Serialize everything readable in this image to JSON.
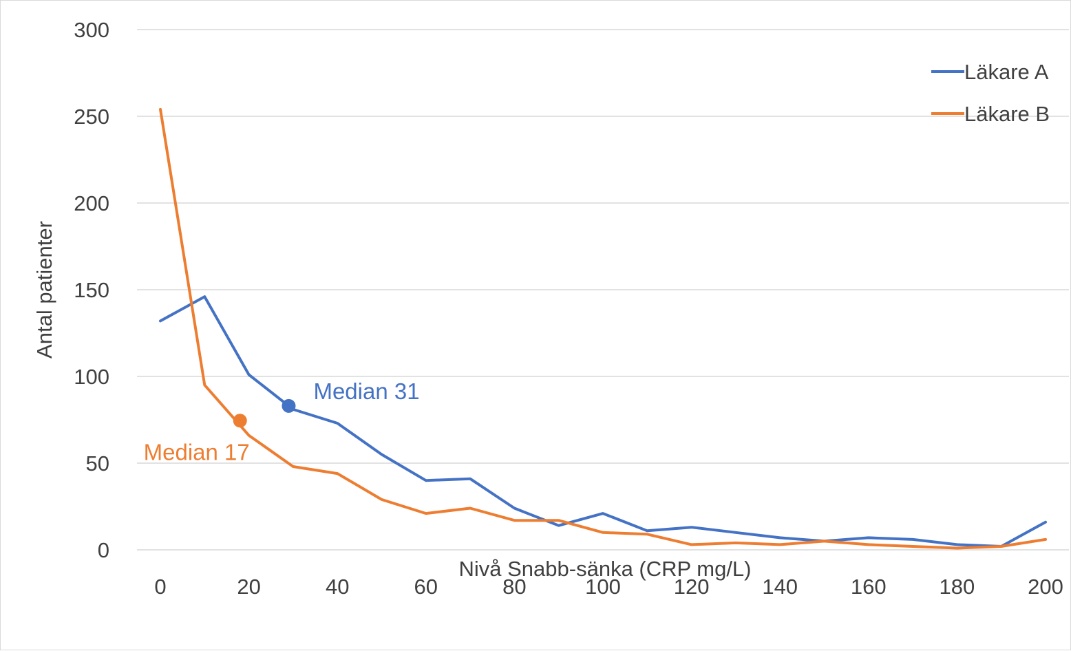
{
  "chart_data": {
    "type": "line",
    "title": "",
    "xlabel": "Nivå Snabb-sänka (CRP mg/L)",
    "ylabel": "Antal patienter",
    "xlim": [
      0,
      200
    ],
    "ylim": [
      0,
      300
    ],
    "x_ticks": [
      0,
      20,
      40,
      60,
      80,
      100,
      120,
      140,
      160,
      180,
      200
    ],
    "y_ticks": [
      0,
      50,
      100,
      150,
      200,
      250,
      300
    ],
    "grid": true,
    "legend_position": "top-right",
    "x": [
      0,
      10,
      20,
      30,
      40,
      50,
      60,
      70,
      80,
      90,
      100,
      110,
      120,
      130,
      140,
      150,
      160,
      170,
      180,
      190,
      200
    ],
    "series": [
      {
        "name": "Läkare A",
        "color": "#4472c4",
        "values": [
          132,
          146,
          101,
          81,
          73,
          55,
          40,
          41,
          24,
          14,
          21,
          11,
          13,
          10,
          7,
          5,
          7,
          6,
          3,
          2,
          16
        ]
      },
      {
        "name": "Läkare B",
        "color": "#ed7d31",
        "values": [
          254,
          95,
          66,
          48,
          44,
          29,
          21,
          24,
          17,
          17,
          10,
          9,
          3,
          4,
          3,
          5,
          3,
          2,
          1,
          2,
          6
        ]
      }
    ],
    "annotations": [
      {
        "label": "Median 31",
        "x": 29,
        "y": 83,
        "color": "#4472c4",
        "side": "right"
      },
      {
        "label": "Median 17",
        "x": 18,
        "y": 74.5,
        "color": "#ed7d31",
        "side": "below-left"
      }
    ]
  }
}
